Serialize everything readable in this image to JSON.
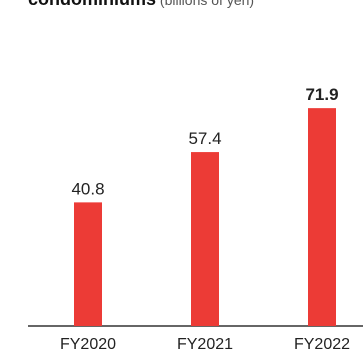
{
  "title": {
    "main": "condominiums",
    "sub": " (billions of yen)"
  },
  "chart_data": {
    "type": "bar",
    "categories": [
      "FY2020",
      "FY2021",
      "FY2022"
    ],
    "values": [
      40.8,
      57.4,
      71.9
    ],
    "value_labels": [
      "40.8",
      "57.4",
      "71.9"
    ],
    "highlight_index": 2,
    "bar_color": "#ec3b36",
    "axis_color": "#333333",
    "ylim": [
      0,
      80
    ],
    "grid": false,
    "legend": "none"
  }
}
